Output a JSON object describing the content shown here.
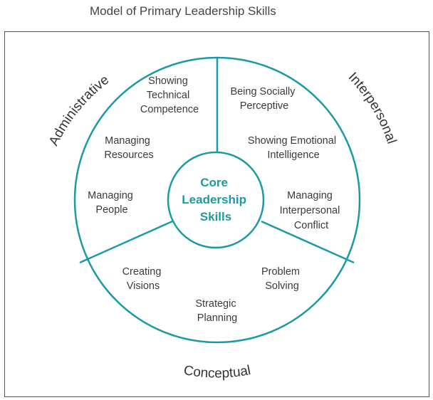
{
  "title": "Model of Primary Leadership Skills",
  "colors": {
    "teal": "#1a9aa2",
    "text": "#3a3a3a",
    "frame": "#555555"
  },
  "core": {
    "line1": "Core",
    "line2": "Leadership",
    "line3": "Skills"
  },
  "categories": {
    "administrative": "Administrative",
    "interpersonal": "Interpersonal",
    "conceptual": "Conceptual"
  },
  "administrative_skills": {
    "technical_competence": [
      "Showing",
      "Technical",
      "Competence"
    ],
    "managing_resources": [
      "Managing",
      "Resources"
    ],
    "managing_people": [
      "Managing",
      "People"
    ]
  },
  "interpersonal_skills": {
    "socially_perceptive": [
      "Being Socially",
      "Perceptive"
    ],
    "emotional_intelligence": [
      "Showing Emotional",
      "Intelligence"
    ],
    "interpersonal_conflict": [
      "Managing",
      "Interpersonal",
      "Conflict"
    ]
  },
  "conceptual_skills": {
    "creating_visions": [
      "Creating",
      "Visions"
    ],
    "strategic_planning": [
      "Strategic",
      "Planning"
    ],
    "problem_solving": [
      "Problem",
      "Solving"
    ]
  }
}
